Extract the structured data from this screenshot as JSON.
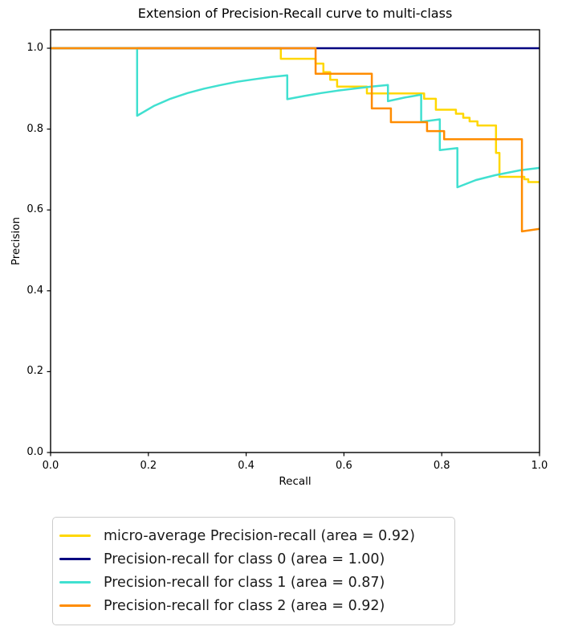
{
  "chart_data": {
    "type": "line",
    "title": "Extension of Precision-Recall curve to multi-class",
    "xlabel": "Recall",
    "ylabel": "Precision",
    "xlim": [
      0.0,
      1.0
    ],
    "ylim": [
      0.0,
      1.05
    ],
    "xticks": [
      "0.0",
      "0.2",
      "0.4",
      "0.6",
      "0.8",
      "1.0"
    ],
    "yticks": [
      "0.0",
      "0.2",
      "0.4",
      "0.6",
      "0.8",
      "1.0"
    ],
    "grid": false,
    "legend": {
      "position": "below-plot",
      "border_color": "#cccccc"
    },
    "axis_color": "#000000",
    "series": [
      {
        "name": "micro-average",
        "label": "micro-average Precision-recall (area = 0.92)",
        "area": 0.92,
        "color": "#ffd700",
        "points": [
          [
            0.0,
            1.0
          ],
          [
            0.471,
            1.0
          ],
          [
            0.471,
            0.974
          ],
          [
            0.542,
            0.974
          ],
          [
            0.542,
            0.962
          ],
          [
            0.558,
            0.962
          ],
          [
            0.558,
            0.941
          ],
          [
            0.572,
            0.941
          ],
          [
            0.572,
            0.922
          ],
          [
            0.586,
            0.922
          ],
          [
            0.586,
            0.905
          ],
          [
            0.647,
            0.905
          ],
          [
            0.647,
            0.888
          ],
          [
            0.764,
            0.888
          ],
          [
            0.764,
            0.875
          ],
          [
            0.788,
            0.875
          ],
          [
            0.788,
            0.848
          ],
          [
            0.829,
            0.848
          ],
          [
            0.829,
            0.838
          ],
          [
            0.844,
            0.838
          ],
          [
            0.844,
            0.828
          ],
          [
            0.857,
            0.828
          ],
          [
            0.857,
            0.819
          ],
          [
            0.873,
            0.819
          ],
          [
            0.873,
            0.809
          ],
          [
            0.911,
            0.809
          ],
          [
            0.911,
            0.741
          ],
          [
            0.918,
            0.741
          ],
          [
            0.918,
            0.682
          ],
          [
            0.969,
            0.682
          ],
          [
            0.969,
            0.676
          ],
          [
            0.977,
            0.676
          ],
          [
            0.977,
            0.669
          ],
          [
            1.0,
            0.669
          ]
        ]
      },
      {
        "name": "class-0",
        "label": "Precision-recall for class 0 (area = 1.00)",
        "area": 1.0,
        "color": "#000080",
        "points": [
          [
            0.0,
            1.0
          ],
          [
            1.0,
            1.0
          ]
        ]
      },
      {
        "name": "class-1",
        "label": "Precision-recall for class 1 (area = 0.87)",
        "area": 0.87,
        "color": "#40e0d0",
        "points": [
          [
            0.0,
            1.0
          ],
          [
            0.177,
            1.0
          ],
          [
            0.177,
            0.833
          ],
          [
            0.211,
            0.857
          ],
          [
            0.245,
            0.875
          ],
          [
            0.28,
            0.889
          ],
          [
            0.314,
            0.9
          ],
          [
            0.348,
            0.909
          ],
          [
            0.382,
            0.917
          ],
          [
            0.416,
            0.923
          ],
          [
            0.451,
            0.929
          ],
          [
            0.484,
            0.933
          ],
          [
            0.484,
            0.874
          ],
          [
            0.519,
            0.882
          ],
          [
            0.553,
            0.889
          ],
          [
            0.587,
            0.895
          ],
          [
            0.621,
            0.9
          ],
          [
            0.656,
            0.905
          ],
          [
            0.69,
            0.909
          ],
          [
            0.69,
            0.869
          ],
          [
            0.724,
            0.878
          ],
          [
            0.758,
            0.885
          ],
          [
            0.758,
            0.818
          ],
          [
            0.796,
            0.824
          ],
          [
            0.796,
            0.748
          ],
          [
            0.832,
            0.753
          ],
          [
            0.832,
            0.656
          ],
          [
            0.87,
            0.674
          ],
          [
            0.91,
            0.686
          ],
          [
            0.96,
            0.698
          ],
          [
            1.0,
            0.704
          ]
        ]
      },
      {
        "name": "class-2",
        "label": "Precision-recall for class 2 (area = 0.92)",
        "area": 0.92,
        "color": "#ff8c00",
        "points": [
          [
            0.0,
            1.0
          ],
          [
            0.542,
            1.0
          ],
          [
            0.542,
            0.937
          ],
          [
            0.657,
            0.937
          ],
          [
            0.657,
            0.851
          ],
          [
            0.696,
            0.851
          ],
          [
            0.696,
            0.817
          ],
          [
            0.77,
            0.817
          ],
          [
            0.77,
            0.795
          ],
          [
            0.805,
            0.795
          ],
          [
            0.805,
            0.775
          ],
          [
            0.964,
            0.775
          ],
          [
            0.964,
            0.547
          ],
          [
            1.0,
            0.553
          ]
        ]
      }
    ]
  }
}
